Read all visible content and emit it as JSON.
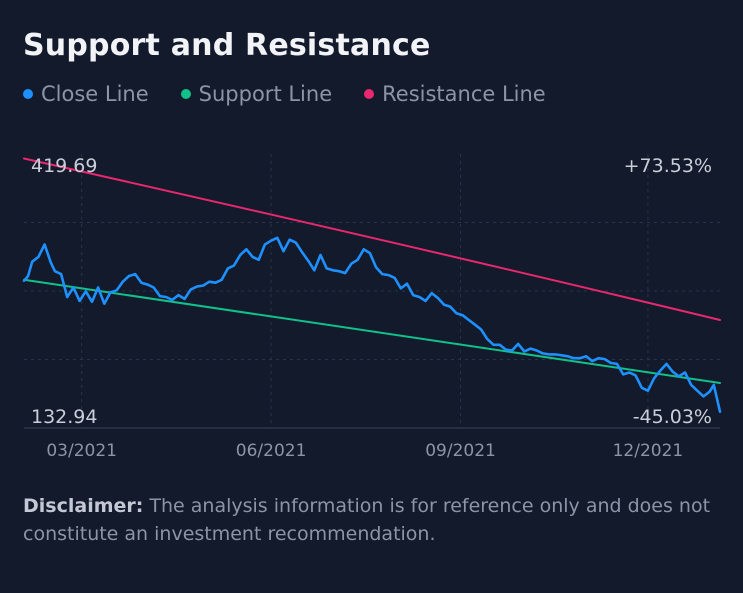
{
  "title": "Support and Resistance",
  "legend": [
    {
      "label": "Close Line",
      "color": "#1e90ff"
    },
    {
      "label": "Support Line",
      "color": "#12c08a"
    },
    {
      "label": "Resistance Line",
      "color": "#e8286e"
    }
  ],
  "corner_labels": {
    "top_left": "419.69",
    "bottom_left": "132.94",
    "top_right": "+73.53%",
    "bottom_right": "-45.03%"
  },
  "disclaimer": {
    "label": "Disclaimer:",
    "text": "The analysis information is for reference only and does not constitute an investment recommendation."
  },
  "chart_data": {
    "type": "line",
    "title": "Support and Resistance",
    "ylim": [
      132.94,
      419.69
    ],
    "x_tick_labels": [
      "03/2021",
      "06/2021",
      "09/2021",
      "12/2021"
    ],
    "x_ticks": [
      "2021-03-01",
      "2021-06-01",
      "2021-09-01",
      "2021-12-01"
    ],
    "x_range": [
      "2021-02-01",
      "2022-01-05"
    ],
    "grid": true,
    "series": [
      {
        "name": "Close Line",
        "color": "#1e90ff",
        "x": [
          "2021-02-01",
          "2021-02-03",
          "2021-02-05",
          "2021-02-08",
          "2021-02-11",
          "2021-02-14",
          "2021-02-16",
          "2021-02-19",
          "2021-02-22",
          "2021-02-25",
          "2021-02-28",
          "2021-03-03",
          "2021-03-06",
          "2021-03-09",
          "2021-03-12",
          "2021-03-15",
          "2021-03-18",
          "2021-03-21",
          "2021-03-24",
          "2021-03-27",
          "2021-03-30",
          "2021-04-02",
          "2021-04-05",
          "2021-04-08",
          "2021-04-11",
          "2021-04-14",
          "2021-04-17",
          "2021-04-20",
          "2021-04-23",
          "2021-04-26",
          "2021-04-29",
          "2021-05-02",
          "2021-05-05",
          "2021-05-08",
          "2021-05-11",
          "2021-05-14",
          "2021-05-17",
          "2021-05-20",
          "2021-05-23",
          "2021-05-26",
          "2021-05-29",
          "2021-06-01",
          "2021-06-04",
          "2021-06-07",
          "2021-06-10",
          "2021-06-13",
          "2021-06-16",
          "2021-06-19",
          "2021-06-22",
          "2021-06-25",
          "2021-06-28",
          "2021-07-01",
          "2021-07-04",
          "2021-07-07",
          "2021-07-10",
          "2021-07-13",
          "2021-07-16",
          "2021-07-19",
          "2021-07-22",
          "2021-07-25",
          "2021-07-28",
          "2021-07-31",
          "2021-08-03",
          "2021-08-06",
          "2021-08-09",
          "2021-08-12",
          "2021-08-15",
          "2021-08-18",
          "2021-08-21",
          "2021-08-24",
          "2021-08-27",
          "2021-08-30",
          "2021-09-02",
          "2021-09-05",
          "2021-09-08",
          "2021-09-11",
          "2021-09-14",
          "2021-09-17",
          "2021-09-20",
          "2021-09-23",
          "2021-09-26",
          "2021-09-29",
          "2021-10-02",
          "2021-10-05",
          "2021-10-08",
          "2021-10-11",
          "2021-10-14",
          "2021-10-17",
          "2021-10-20",
          "2021-10-23",
          "2021-10-26",
          "2021-10-29",
          "2021-11-01",
          "2021-11-04",
          "2021-11-07",
          "2021-11-10",
          "2021-11-13",
          "2021-11-16",
          "2021-11-19",
          "2021-11-22",
          "2021-11-25",
          "2021-11-28",
          "2021-12-01",
          "2021-12-04",
          "2021-12-07",
          "2021-12-10",
          "2021-12-13",
          "2021-12-16",
          "2021-12-19",
          "2021-12-22",
          "2021-12-25",
          "2021-12-28",
          "2021-12-31",
          "2022-01-02",
          "2022-01-05"
        ],
        "values": [
          287,
          292,
          307,
          312,
          325,
          306,
          297,
          294,
          270,
          280,
          266,
          276,
          265,
          280,
          263,
          275,
          277,
          286,
          292,
          294,
          285,
          283,
          280,
          271,
          270,
          267,
          272,
          268,
          278,
          281,
          282,
          286,
          285,
          288,
          300,
          303,
          314,
          320,
          312,
          309,
          325,
          329,
          332,
          318,
          330,
          327,
          317,
          308,
          298,
          314,
          300,
          298,
          297,
          295,
          305,
          309,
          320,
          316,
          301,
          294,
          293,
          290,
          279,
          284,
          272,
          270,
          266,
          274,
          269,
          262,
          260,
          253,
          251,
          246,
          241,
          236,
          226,
          220,
          220,
          215,
          214,
          221,
          213,
          216,
          214,
          211,
          210,
          210,
          209,
          208,
          206,
          206,
          208,
          203,
          206,
          205,
          201,
          200,
          189,
          191,
          188,
          175,
          172,
          185,
          193,
          200,
          192,
          187,
          191,
          178,
          172,
          166,
          171,
          178,
          150
        ]
      },
      {
        "name": "Support Line",
        "color": "#12c08a",
        "x": [
          "2021-02-01",
          "2022-01-05"
        ],
        "values": [
          288,
          180
        ]
      },
      {
        "name": "Resistance Line",
        "color": "#e8286e",
        "x": [
          "2021-02-01",
          "2021-08-01",
          "2022-01-05"
        ],
        "values": [
          415,
          326,
          246
        ]
      }
    ]
  }
}
